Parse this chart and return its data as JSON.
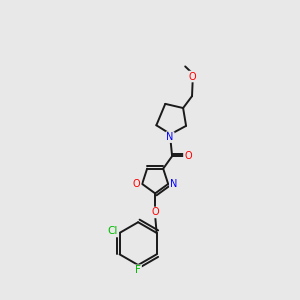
{
  "bg_color": "#e8e8e8",
  "bond_color": "#1a1a1a",
  "bond_width": 1.4,
  "atom_colors": {
    "O": "#ff0000",
    "N": "#0000ff",
    "Cl": "#00bb00",
    "F": "#00bb00",
    "C": "#1a1a1a"
  },
  "font_size": 7.0
}
